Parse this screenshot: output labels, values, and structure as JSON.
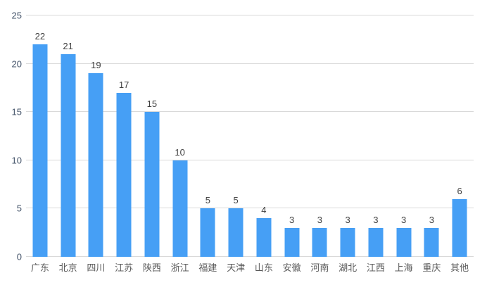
{
  "chart": {
    "background": "#FFFFFF",
    "bar_color": "#469FF5",
    "grid_color": "#D9D9D9",
    "axis_line_color": "#D9D9D9",
    "y_tick_label_color": "#44546A",
    "x_tick_label_color": "#595959",
    "value_label_color": "#404040"
  },
  "chart_data": {
    "type": "bar",
    "categories": [
      "广东",
      "北京",
      "四川",
      "江苏",
      "陕西",
      "浙江",
      "福建",
      "天津",
      "山东",
      "安徽",
      "河南",
      "湖北",
      "江西",
      "上海",
      "重庆",
      "其他"
    ],
    "values": [
      22,
      21,
      19,
      17,
      15,
      10,
      5,
      5,
      4,
      3,
      3,
      3,
      3,
      3,
      3,
      6
    ],
    "title": "",
    "xlabel": "",
    "ylabel": "",
    "ylim": [
      0,
      25
    ],
    "yticks": [
      0,
      5,
      10,
      15,
      20,
      25
    ],
    "grid": true,
    "legend": "none",
    "data_labels": true
  }
}
